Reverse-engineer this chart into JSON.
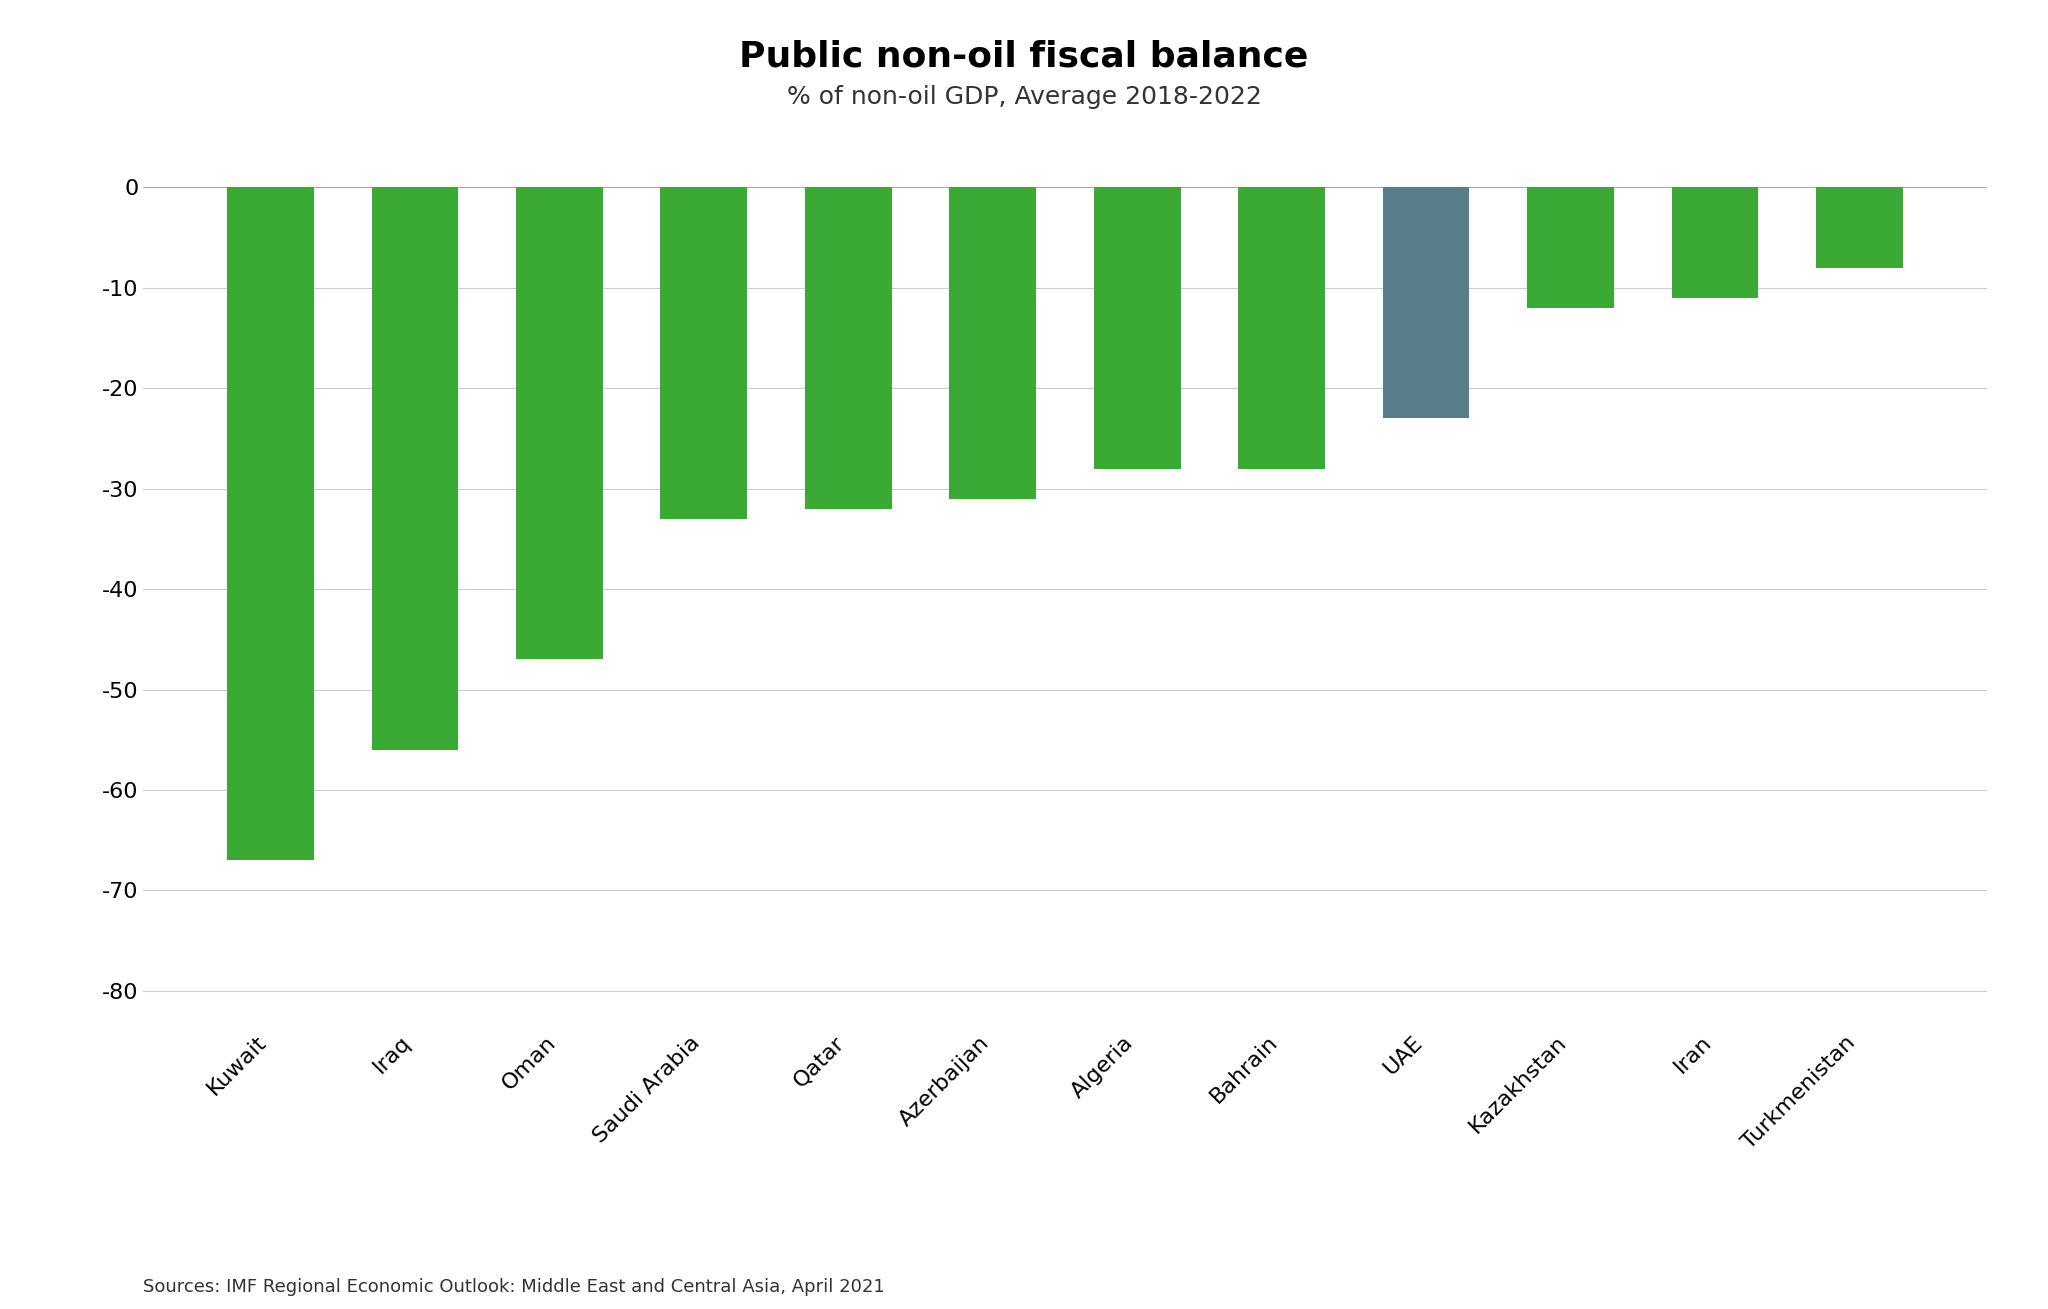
{
  "title": "Public non-oil fiscal balance",
  "subtitle": "% of non-oil GDP, Average 2018-2022",
  "source_text": "Sources: IMF Regional Economic Outlook: Middle East and Central Asia, April 2021",
  "categories": [
    "Kuwait",
    "Iraq",
    "Oman",
    "Saudi Arabia",
    "Qatar",
    "Azerbaijan",
    "Algeria",
    "Bahrain",
    "UAE",
    "Kazakhstan",
    "Iran",
    "Turkmenistan"
  ],
  "values": [
    -67,
    -56,
    -47,
    -33,
    -32,
    -31,
    -28,
    -28,
    -23,
    -12,
    -11,
    -8
  ],
  "bar_colors": [
    "#3aaa35",
    "#3aaa35",
    "#3aaa35",
    "#3aaa35",
    "#3aaa35",
    "#3aaa35",
    "#3aaa35",
    "#3aaa35",
    "#5a7d8a",
    "#3aaa35",
    "#3aaa35",
    "#3aaa35"
  ],
  "ylim": [
    -83,
    3
  ],
  "yticks": [
    0,
    -10,
    -20,
    -30,
    -40,
    -50,
    -60,
    -70,
    -80
  ],
  "background_color": "#ffffff",
  "title_fontsize": 26,
  "subtitle_fontsize": 18,
  "tick_fontsize": 16,
  "xlabel_fontsize": 16,
  "source_fontsize": 13,
  "bar_width": 0.6
}
